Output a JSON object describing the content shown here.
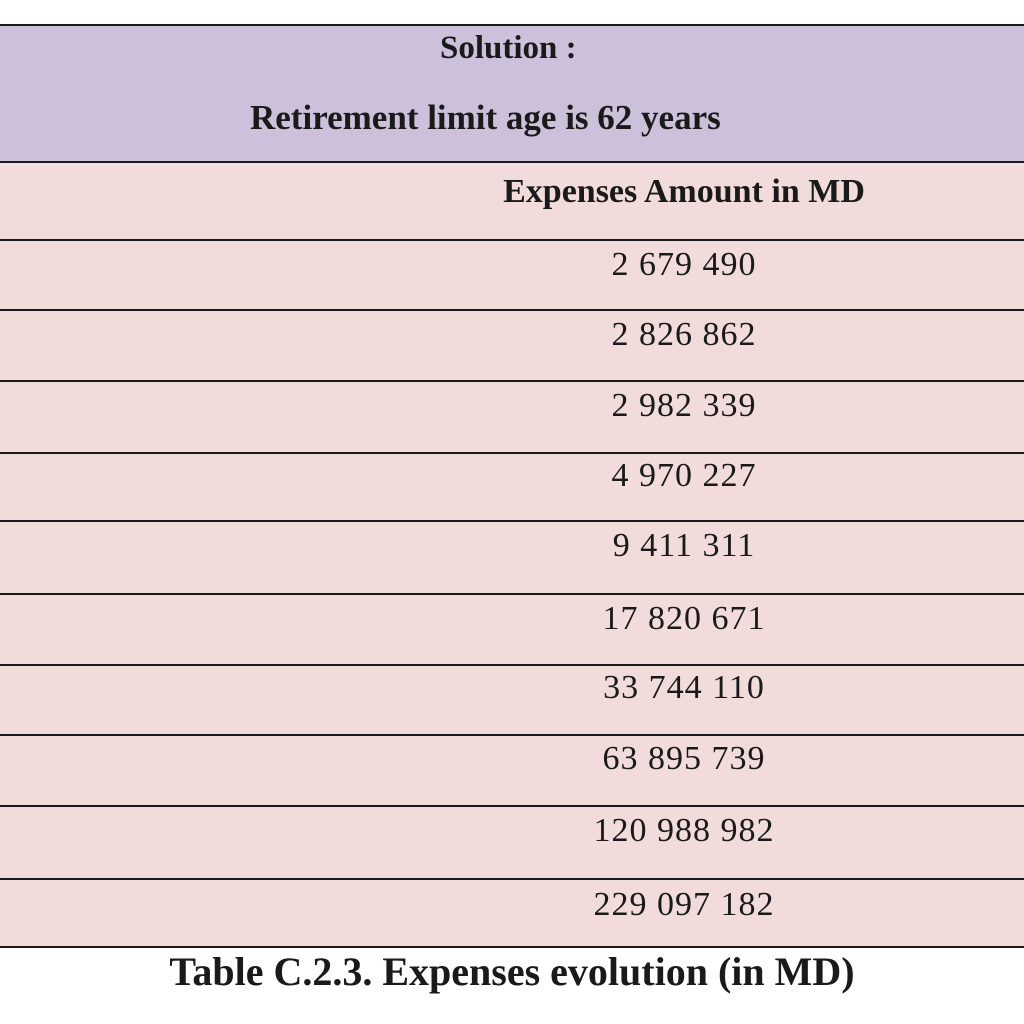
{
  "header": {
    "title": "Solution :",
    "subtitle": "Retirement limit age is 62 years"
  },
  "table": {
    "column_header": "Expenses Amount in MD",
    "rows": [
      "2 679 490",
      "2 826 862",
      "2 982 339",
      "4 970 227",
      "9 411 311",
      "17 820 671",
      "33 744 110",
      "63 895 739",
      "120 988 982",
      "229 097 182"
    ]
  },
  "caption": "Table C.2.3. Expenses evolution (in MD)",
  "colors": {
    "header_bg": "#ccc0da",
    "row_bg": "#f2dcdb",
    "border": "#1a1a1a"
  }
}
